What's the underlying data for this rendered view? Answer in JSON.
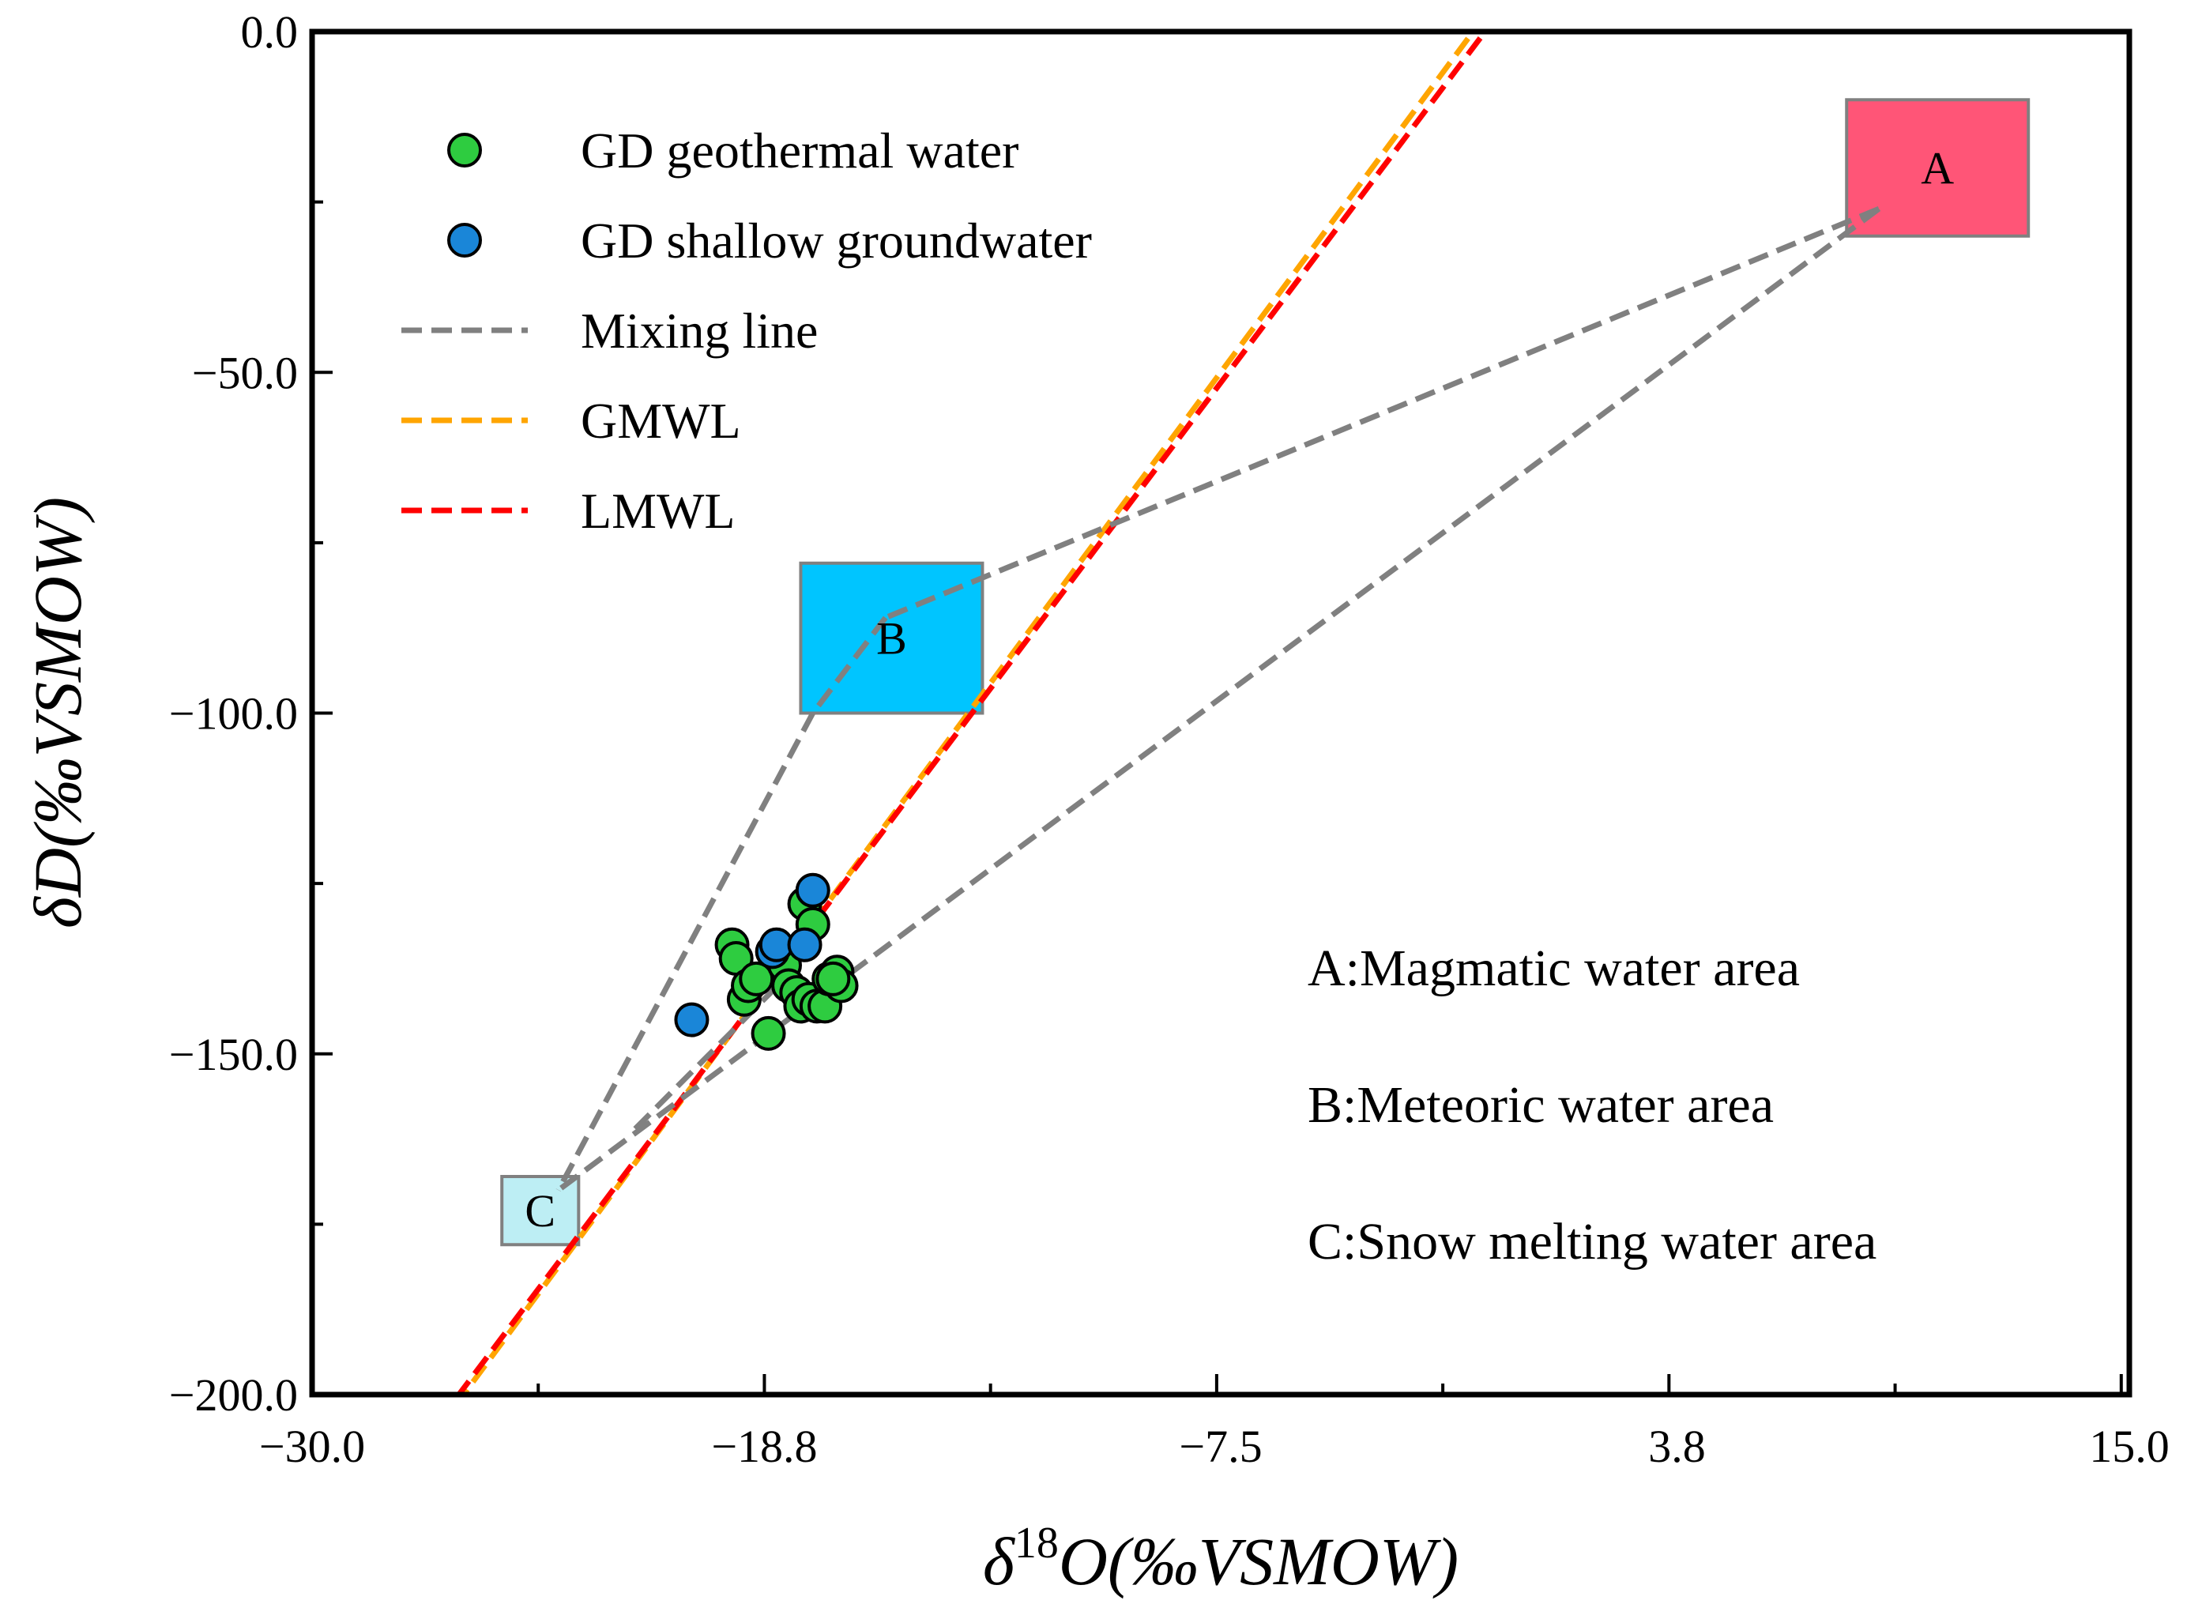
{
  "chart_data": {
    "type": "scatter",
    "title": "",
    "xlabel": {
      "prefix": "δ",
      "sup": "18",
      "main": "O(‰VSMOW)"
    },
    "ylabel": "δD(‰VSMOW)",
    "xlim": [
      -30.0,
      15.0
    ],
    "ylim": [
      -200.0,
      0.0
    ],
    "x_ticks": [
      -30.0,
      -18.8,
      -7.5,
      3.8,
      15.0
    ],
    "x_tick_labels": [
      "−30.0",
      "−18.8",
      "−7.5",
      "3.8",
      "15.0"
    ],
    "y_ticks": [
      0.0,
      -50.0,
      -100.0,
      -150.0,
      -200.0
    ],
    "y_tick_labels": [
      "0.0",
      "−50.0",
      "−100.0",
      "−150.0",
      "−200.0"
    ],
    "grid": false,
    "legend": {
      "placement": "top-left",
      "entries": [
        {
          "label": "GD geothermal water",
          "kind": "marker",
          "color": "#2ecc40"
        },
        {
          "label": "GD shallow groundwater",
          "kind": "marker",
          "color": "#1a86d8"
        },
        {
          "label": "Mixing line",
          "kind": "dash",
          "color": "#808080"
        },
        {
          "label": "GMWL",
          "kind": "dash",
          "color": "#ffa500"
        },
        {
          "label": "LMWL",
          "kind": "dash",
          "color": "#ff0000"
        }
      ]
    },
    "series": [
      {
        "name": "GD geothermal water",
        "color": "#2ecc40",
        "points": [
          [
            -19.6,
            -134
          ],
          [
            -19.5,
            -136
          ],
          [
            -19.3,
            -142
          ],
          [
            -19.2,
            -140
          ],
          [
            -19.0,
            -139
          ],
          [
            -18.7,
            -147
          ],
          [
            -18.3,
            -137
          ],
          [
            -18.2,
            -140
          ],
          [
            -18.0,
            -141
          ],
          [
            -17.9,
            -143
          ],
          [
            -17.8,
            -128
          ],
          [
            -17.7,
            -142
          ],
          [
            -17.6,
            -131
          ],
          [
            -17.5,
            -143
          ],
          [
            -17.3,
            -143
          ],
          [
            -17.2,
            -139
          ],
          [
            -17.0,
            -138
          ],
          [
            -16.9,
            -140
          ],
          [
            -17.1,
            -139
          ]
        ]
      },
      {
        "name": "GD shallow groundwater",
        "color": "#1a86d8",
        "points": [
          [
            -20.6,
            -145
          ],
          [
            -18.6,
            -135
          ],
          [
            -18.5,
            -134
          ],
          [
            -17.8,
            -134
          ],
          [
            -17.6,
            -126
          ]
        ]
      }
    ],
    "lines": [
      {
        "name": "GMWL",
        "color": "#ffa500",
        "slope": 8,
        "intercept": 10,
        "style": "dashed"
      },
      {
        "name": "LMWL",
        "color": "#ff0000",
        "slope": 7.87,
        "intercept": 7.5,
        "style": "dashed"
      }
    ],
    "mixing_lines": [
      {
        "from": [
          8.8,
          -26
        ],
        "to": [
          -15.8,
          -86
        ]
      },
      {
        "from": [
          8.8,
          -26
        ],
        "to": [
          -23.9,
          -170
        ]
      },
      {
        "from": [
          -17.6,
          -100
        ],
        "to": [
          -23.9,
          -170
        ]
      },
      {
        "from": [
          -15.8,
          -86
        ],
        "to": [
          -17.6,
          -100
        ]
      },
      {
        "from": [
          -22.0,
          -161
        ],
        "to": [
          -17.8,
          -136
        ]
      }
    ],
    "regions": [
      {
        "id": "A",
        "label": "A",
        "color": "#ff5577",
        "x": [
          8.0,
          12.5
        ],
        "y": [
          -30,
          -10
        ]
      },
      {
        "id": "B",
        "label": "B",
        "color": "#00c5ff",
        "x": [
          -17.9,
          -13.4
        ],
        "y": [
          -100,
          -78
        ]
      },
      {
        "id": "C",
        "label": "C",
        "color": "#bdeef4",
        "x": [
          -25.3,
          -23.4
        ],
        "y": [
          -178,
          -168
        ]
      }
    ],
    "annotations": [
      "A:Magmatic water area",
      "B:Meteoric water area",
      "C:Snow melting water area"
    ]
  }
}
